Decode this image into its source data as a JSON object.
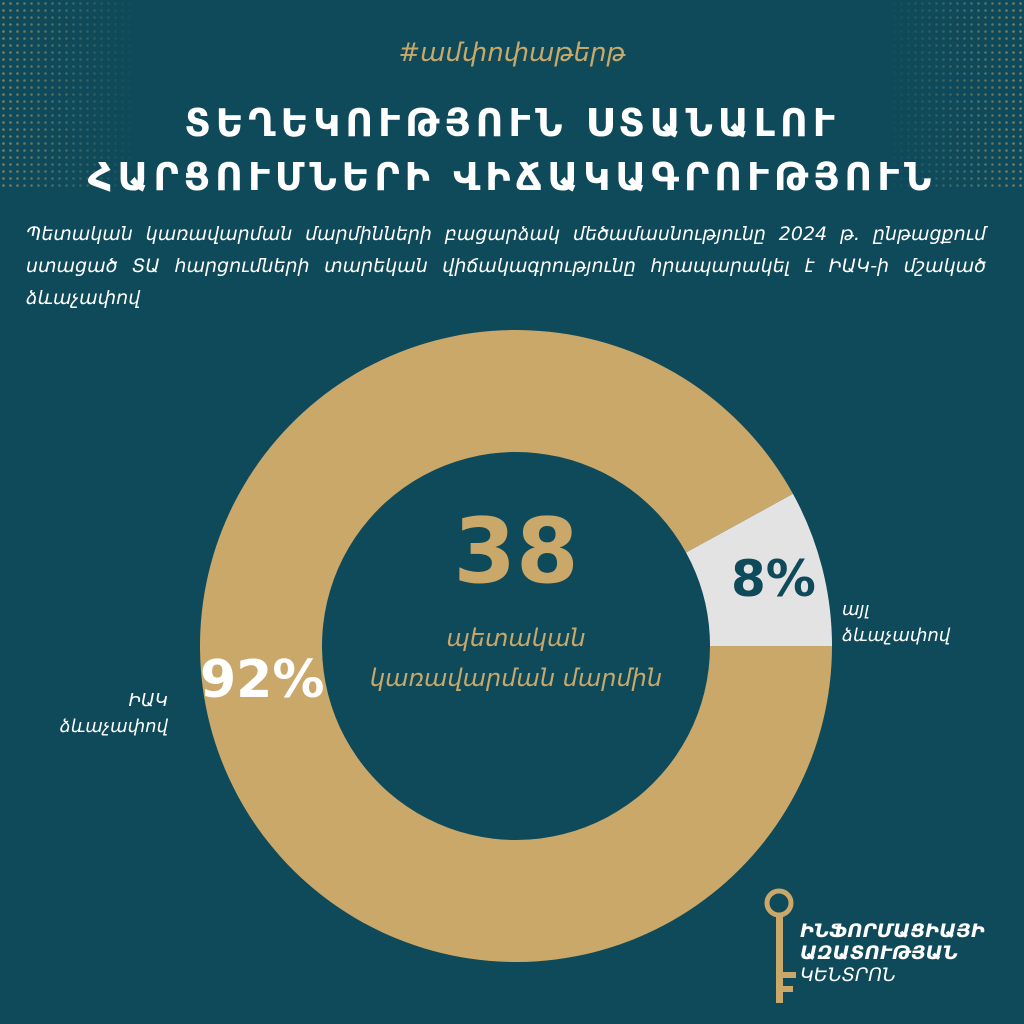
{
  "hashtag": "#ամփոփաթերթ",
  "title": {
    "line1": "ՏԵՂԵԿՈՒԹՅՈՒՆ ՍՏԱՆԱԼՈՒ",
    "line2": "ՀԱՐՑՈՒՄՆԵՐԻ ՎԻՃԱԿԱԳՐՈՒԹՅՈՒՆ"
  },
  "description": "Պետական կառավարման մարմինների բացարձակ մեծամասնությունը 2024 թ. ընթացքում ստացած ՏԱ հարցումների տարեկան վիճակագրությունը հրապարակել է ԻԱԿ-ի մշակած ձևաչափով",
  "center": {
    "number": "38",
    "subtitle_line1": "պետական",
    "subtitle_line2": "կառավարման մարմին"
  },
  "logo": {
    "line1": "ԻՆՖՈՐՄԱՑԻԱՅԻ",
    "line2": "ԱԶԱՏՈՒԹՅԱՆ",
    "line3": "ԿԵՆՏՐՈՆ"
  },
  "colors": {
    "background": "#0f4a5a",
    "gold": "#c9a86a",
    "light": "#e3e3e3"
  },
  "chart_data": {
    "type": "pie",
    "donut": true,
    "categories": [
      "ԻԱԿ ձևաչափով",
      "այլ ձևաչափով"
    ],
    "values": [
      92,
      8
    ],
    "labels": [
      "92%",
      "8%"
    ],
    "label_lines": [
      [
        "ԻԱԿ",
        "ձևաչափով"
      ],
      [
        "այլ",
        "ձևաչափով"
      ]
    ],
    "colors": [
      "#c9a86a",
      "#e3e3e3"
    ]
  }
}
